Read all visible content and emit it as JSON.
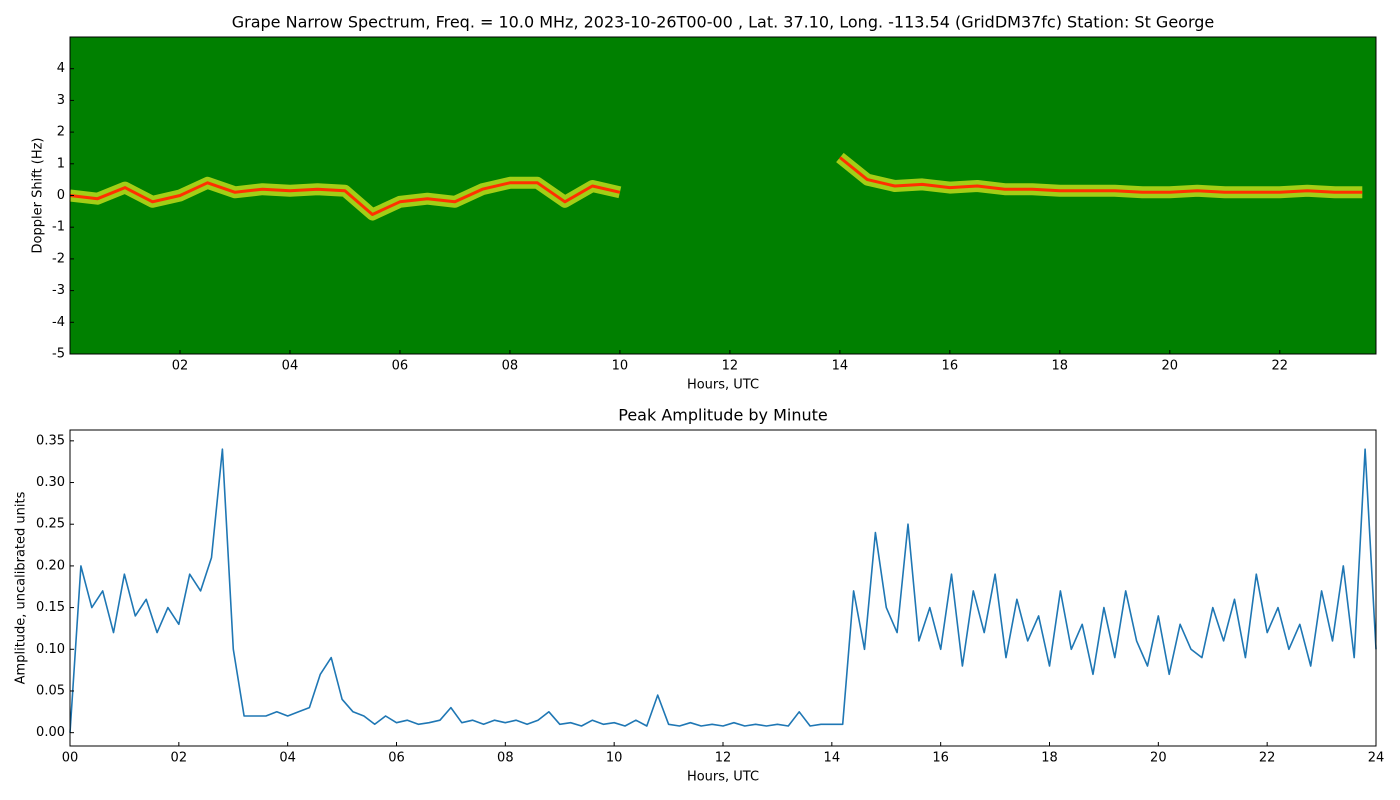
{
  "chart_data": [
    {
      "type": "spectrogram",
      "title": "Grape Narrow Spectrum, Freq. = 10.0 MHz, 2023-10-26T00-00 , Lat.  37.10, Long. -113.54 (GridDM37fc) Station: St George",
      "x_label": "Hours, UTC",
      "y_label": "Doppler Shift (Hz)",
      "background": "#008000",
      "xlim": [
        0,
        23.75
      ],
      "ylim": [
        -5,
        5
      ],
      "xticks": [
        {
          "value": 2,
          "label": "02"
        },
        {
          "value": 4,
          "label": "04"
        },
        {
          "value": 6,
          "label": "06"
        },
        {
          "value": 8,
          "label": "08"
        },
        {
          "value": 10,
          "label": "10"
        },
        {
          "value": 12,
          "label": "12"
        },
        {
          "value": 14,
          "label": "14"
        },
        {
          "value": 16,
          "label": "16"
        },
        {
          "value": 18,
          "label": "18"
        },
        {
          "value": 20,
          "label": "20"
        },
        {
          "value": 22,
          "label": "22"
        }
      ],
      "yticks": [
        -5,
        -4,
        -3,
        -2,
        -1,
        0,
        1,
        2,
        3,
        4
      ],
      "series": [
        {
          "color": "#ff3000",
          "x": [
            0,
            0.5,
            1,
            1.5,
            2,
            2.5,
            3,
            3.5,
            4,
            4.5,
            5,
            5.5,
            6,
            6.5,
            7,
            7.5,
            8,
            8.5,
            9,
            9.5,
            10,
            10.5,
            11,
            11.5,
            12,
            12.5,
            13,
            13.5,
            14,
            14.5,
            15,
            15.5,
            16,
            16.5,
            17,
            17.5,
            18,
            18.5,
            19,
            19.5,
            20,
            20.5,
            21,
            21.5,
            22,
            22.5,
            23,
            23.5
          ],
          "values": [
            0.0,
            -0.1,
            0.25,
            -0.2,
            0.0,
            0.4,
            0.1,
            0.2,
            0.15,
            0.2,
            0.15,
            -0.6,
            -0.2,
            -0.1,
            -0.2,
            0.2,
            0.4,
            0.4,
            -0.2,
            0.3,
            0.1,
            null,
            null,
            null,
            null,
            null,
            null,
            null,
            1.2,
            0.5,
            0.3,
            0.35,
            0.25,
            0.3,
            0.2,
            0.2,
            0.15,
            0.15,
            0.15,
            0.1,
            0.1,
            0.15,
            0.1,
            0.1,
            0.1,
            0.15,
            0.1,
            0.1
          ]
        }
      ]
    },
    {
      "type": "line",
      "title": "Peak Amplitude by Minute",
      "x_label": "Hours, UTC",
      "y_label": "Amplitude, uncalibrated units",
      "xlim": [
        0,
        24
      ],
      "ylim": [
        -0.016,
        0.363
      ],
      "xticks": [
        {
          "value": 0,
          "label": "00"
        },
        {
          "value": 2,
          "label": "02"
        },
        {
          "value": 4,
          "label": "04"
        },
        {
          "value": 6,
          "label": "06"
        },
        {
          "value": 8,
          "label": "08"
        },
        {
          "value": 10,
          "label": "10"
        },
        {
          "value": 12,
          "label": "12"
        },
        {
          "value": 14,
          "label": "14"
        },
        {
          "value": 16,
          "label": "16"
        },
        {
          "value": 18,
          "label": "18"
        },
        {
          "value": 20,
          "label": "20"
        },
        {
          "value": 22,
          "label": "22"
        },
        {
          "value": 24,
          "label": "24"
        }
      ],
      "yticks": [
        {
          "value": 0,
          "label": "0.00"
        },
        0.05,
        {
          "value": 0.1,
          "label": "0.10"
        },
        0.15,
        {
          "value": 0.2,
          "label": "0.20"
        },
        0.25,
        {
          "value": 0.3,
          "label": "0.30"
        },
        0.35
      ],
      "series": [
        {
          "color": "#1f77b4",
          "x": [
            0,
            0.2,
            0.4,
            0.6,
            0.8,
            1,
            1.2,
            1.4,
            1.6,
            1.8,
            2,
            2.2,
            2.4,
            2.6,
            2.8,
            3,
            3.2,
            3.4,
            3.6,
            3.8,
            4,
            4.2,
            4.4,
            4.6,
            4.8,
            5,
            5.2,
            5.4,
            5.6,
            5.8,
            6,
            6.2,
            6.4,
            6.6,
            6.8,
            7,
            7.2,
            7.4,
            7.6,
            7.8,
            8,
            8.2,
            8.4,
            8.6,
            8.8,
            9,
            9.2,
            9.4,
            9.6,
            9.8,
            10,
            10.2,
            10.4,
            10.6,
            10.8,
            11,
            11.2,
            11.4,
            11.6,
            11.8,
            12,
            12.2,
            12.4,
            12.6,
            12.8,
            13,
            13.2,
            13.4,
            13.6,
            13.8,
            14,
            14.2,
            14.4,
            14.6,
            14.8,
            15,
            15.2,
            15.4,
            15.6,
            15.8,
            16,
            16.2,
            16.4,
            16.6,
            16.8,
            17,
            17.2,
            17.4,
            17.6,
            17.8,
            18,
            18.2,
            18.4,
            18.6,
            18.8,
            19,
            19.2,
            19.4,
            19.6,
            19.8,
            20,
            20.2,
            20.4,
            20.6,
            20.8,
            21,
            21.2,
            21.4,
            21.6,
            21.8,
            22,
            22.2,
            22.4,
            22.6,
            22.8,
            23,
            23.2,
            23.4,
            23.6,
            23.8,
            24
          ],
          "values": [
            0.0,
            0.2,
            0.15,
            0.17,
            0.12,
            0.19,
            0.14,
            0.16,
            0.12,
            0.15,
            0.13,
            0.19,
            0.17,
            0.21,
            0.34,
            0.1,
            0.02,
            0.02,
            0.02,
            0.025,
            0.02,
            0.025,
            0.03,
            0.07,
            0.09,
            0.04,
            0.025,
            0.02,
            0.01,
            0.02,
            0.012,
            0.015,
            0.01,
            0.012,
            0.015,
            0.03,
            0.012,
            0.015,
            0.01,
            0.015,
            0.012,
            0.015,
            0.01,
            0.015,
            0.025,
            0.01,
            0.012,
            0.008,
            0.015,
            0.01,
            0.012,
            0.008,
            0.015,
            0.008,
            0.045,
            0.01,
            0.008,
            0.012,
            0.008,
            0.01,
            0.008,
            0.012,
            0.008,
            0.01,
            0.008,
            0.01,
            0.008,
            0.025,
            0.008,
            0.01,
            0.01,
            0.01,
            0.17,
            0.1,
            0.24,
            0.15,
            0.12,
            0.25,
            0.11,
            0.15,
            0.1,
            0.19,
            0.08,
            0.17,
            0.12,
            0.19,
            0.09,
            0.16,
            0.11,
            0.14,
            0.08,
            0.17,
            0.1,
            0.13,
            0.07,
            0.15,
            0.09,
            0.17,
            0.11,
            0.08,
            0.14,
            0.07,
            0.13,
            0.1,
            0.09,
            0.15,
            0.11,
            0.16,
            0.09,
            0.19,
            0.12,
            0.15,
            0.1,
            0.13,
            0.08,
            0.17,
            0.11,
            0.2,
            0.09,
            0.34,
            0.1
          ]
        }
      ]
    }
  ]
}
